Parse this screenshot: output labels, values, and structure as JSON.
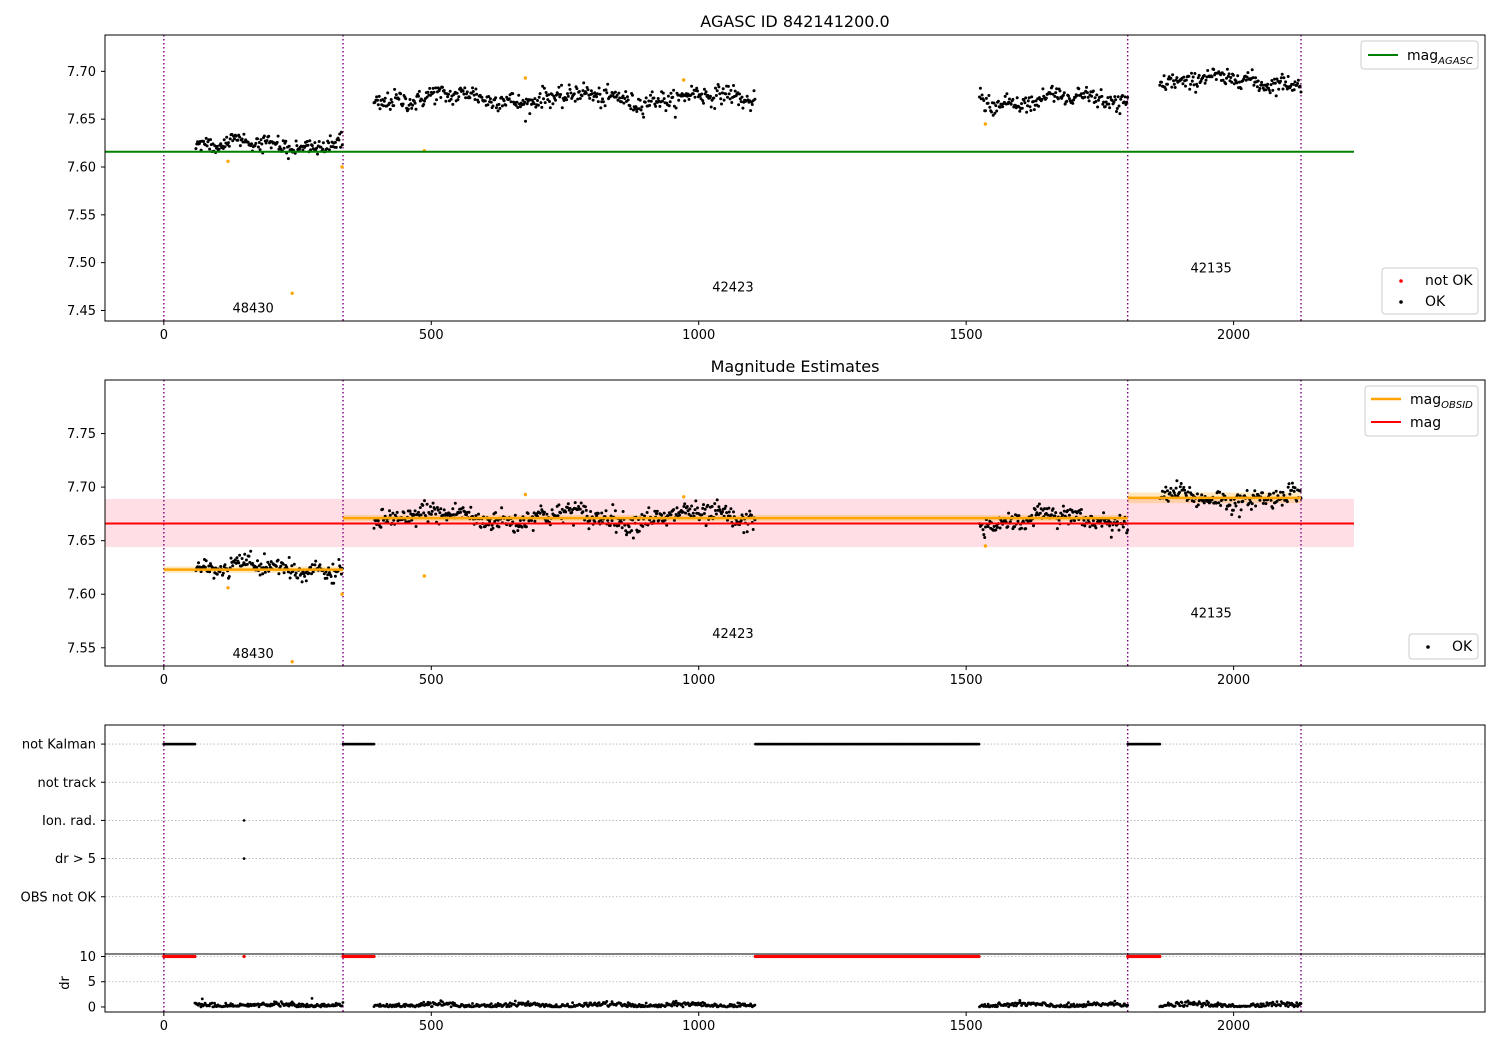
{
  "figure": {
    "background": "#ffffff"
  },
  "colors": {
    "points_ok": "#000000",
    "points_not_ok": "#ff0000",
    "mag_agasc": "#008000",
    "mag_obsid": "#ffa500",
    "mag": "#ff0000",
    "mag_band": "#ffc0cb",
    "obs_boundary": "#800080"
  },
  "chart_data": [
    {
      "id": "panel1",
      "type": "scatter",
      "title": "AGASC ID 842141200.0",
      "xlim": [
        -110,
        2470
      ],
      "ylim": [
        7.439,
        7.738
      ],
      "xticks": [
        0,
        500,
        1000,
        1500,
        2000
      ],
      "xtick_labels": [
        "0",
        "500",
        "1000",
        "1500",
        "2000"
      ],
      "yticks": [
        7.45,
        7.5,
        7.55,
        7.6,
        7.65,
        7.7
      ],
      "ytick_labels": [
        "7.45",
        "7.50",
        "7.55",
        "7.60",
        "7.65",
        "7.70"
      ],
      "legend_upper": {
        "position": "top-right",
        "entries": [
          {
            "name": "mag",
            "subscript": "AGASC",
            "style": "line",
            "color": "#008000"
          }
        ]
      },
      "legend_lower": {
        "position": "bottom-right",
        "entries": [
          {
            "name": "not OK",
            "style": "point",
            "color": "#ff0000"
          },
          {
            "name": "OK",
            "style": "point",
            "color": "#000000"
          }
        ]
      },
      "vlines": [
        0,
        335,
        1802,
        2126
      ],
      "hlines": [
        {
          "name": "mag_AGASC",
          "y": 7.616,
          "x": [
            -110,
            2225
          ],
          "color": "#008000"
        }
      ],
      "obsid_labels": [
        {
          "text": "48430",
          "x": 167,
          "y": 7.453
        },
        {
          "text": "42423",
          "x": 1064,
          "y": 7.475
        },
        {
          "text": "42135",
          "x": 1958,
          "y": 7.495
        }
      ],
      "segments": [
        {
          "x": [
            60,
            335
          ],
          "mean": 7.624,
          "amp": 0.004,
          "sd": 0.0045
        },
        {
          "x": [
            393,
            1106
          ],
          "mean": 7.672,
          "amp": 0.0045,
          "sd": 0.005
        },
        {
          "x": [
            1525,
            1802
          ],
          "mean": 7.67,
          "amp": 0.0055,
          "sd": 0.0045
        },
        {
          "x": [
            1862,
            2126
          ],
          "mean": 7.69,
          "amp": 0.004,
          "sd": 0.0045
        }
      ],
      "outliers": [
        {
          "x": 120,
          "y": 7.606
        },
        {
          "x": 240,
          "y": 7.468
        },
        {
          "x": 333,
          "y": 7.6
        },
        {
          "x": 487,
          "y": 7.617
        },
        {
          "x": 676,
          "y": 7.693
        },
        {
          "x": 972,
          "y": 7.691
        },
        {
          "x": 1536,
          "y": 7.645
        }
      ]
    },
    {
      "id": "panel2",
      "type": "scatter",
      "title": "Magnitude Estimates",
      "xlim": [
        -110,
        2470
      ],
      "ylim": [
        7.533,
        7.8
      ],
      "xticks": [
        0,
        500,
        1000,
        1500,
        2000
      ],
      "xtick_labels": [
        "0",
        "500",
        "1000",
        "1500",
        "2000"
      ],
      "yticks": [
        7.55,
        7.6,
        7.65,
        7.7,
        7.75
      ],
      "ytick_labels": [
        "7.55",
        "7.60",
        "7.65",
        "7.70",
        "7.75"
      ],
      "legend_upper": {
        "position": "top-right",
        "entries": [
          {
            "name": "mag",
            "subscript": "OBSID",
            "style": "line",
            "color": "#ffa500"
          },
          {
            "name": "mag",
            "subscript": "",
            "style": "line",
            "color": "#ff0000"
          }
        ]
      },
      "legend_lower": {
        "position": "bottom-right",
        "entries": [
          {
            "name": "OK",
            "style": "point",
            "color": "#000000"
          }
        ]
      },
      "vlines": [
        0,
        335,
        1802,
        2126
      ],
      "mag": {
        "y": 7.666,
        "band": [
          7.644,
          7.689
        ],
        "x": [
          -110,
          2225
        ]
      },
      "mag_obsid": [
        {
          "x": [
            0,
            335
          ],
          "y": 7.623,
          "band": [
            7.62,
            7.626
          ]
        },
        {
          "x": [
            335,
            1802
          ],
          "y": 7.671,
          "band": [
            7.668,
            7.674
          ]
        },
        {
          "x": [
            1802,
            2126
          ],
          "y": 7.69,
          "band": [
            7.685,
            7.695
          ]
        }
      ],
      "obsid_labels": [
        {
          "text": "48430",
          "x": 167,
          "y": 7.545
        },
        {
          "text": "42423",
          "x": 1064,
          "y": 7.564
        },
        {
          "text": "42135",
          "x": 1958,
          "y": 7.583
        }
      ],
      "outliers": [
        {
          "x": 120,
          "y": 7.606
        },
        {
          "x": 240,
          "y": 7.537
        },
        {
          "x": 333,
          "y": 7.6
        },
        {
          "x": 487,
          "y": 7.617
        },
        {
          "x": 676,
          "y": 7.693
        },
        {
          "x": 972,
          "y": 7.691
        },
        {
          "x": 1536,
          "y": 7.645
        }
      ]
    },
    {
      "id": "panel3",
      "type": "scatter",
      "xlim": [
        -110,
        2470
      ],
      "ylim": [
        -0.5,
        5.5
      ],
      "ytick_labels": [
        "OBS not OK",
        "dr > 5",
        "Ion. rad.",
        "not track",
        "not Kalman"
      ],
      "ytick_values": [
        1,
        2,
        3,
        4,
        5
      ],
      "vlines": [
        0,
        335,
        1802,
        2126
      ],
      "flags": [
        {
          "row": 5,
          "ranges": [
            [
              0,
              58
            ],
            [
              335,
              393
            ],
            [
              1106,
              1525
            ],
            [
              1802,
              1862
            ]
          ]
        },
        {
          "row": 3,
          "points": [
            150
          ]
        },
        {
          "row": 2,
          "points": [
            150
          ]
        }
      ]
    },
    {
      "id": "panel4",
      "type": "scatter",
      "ylabel": "dr",
      "xlim": [
        -110,
        2470
      ],
      "ylim": [
        -1,
        10.5
      ],
      "xticks": [
        0,
        500,
        1000,
        1500,
        2000
      ],
      "xtick_labels": [
        "0",
        "500",
        "1000",
        "1500",
        "2000"
      ],
      "yticks": [
        0,
        5,
        10
      ],
      "ytick_labels": [
        "0",
        "5",
        "10"
      ],
      "vlines": [
        0,
        335,
        1802,
        2126
      ],
      "clipped_value": 10,
      "clipped_ranges": [
        [
          0,
          58
        ],
        [
          335,
          393
        ],
        [
          1106,
          1525
        ],
        [
          1802,
          1862
        ]
      ],
      "clipped_points": [
        150
      ],
      "dr_segments": [
        [
          58,
          335
        ],
        [
          393,
          1106
        ],
        [
          1525,
          1802
        ],
        [
          1862,
          2126
        ]
      ],
      "dr_outliers": [
        {
          "x": 72,
          "y": 1.6
        },
        {
          "x": 240,
          "y": 1.0
        },
        {
          "x": 277,
          "y": 1.7
        }
      ]
    }
  ]
}
